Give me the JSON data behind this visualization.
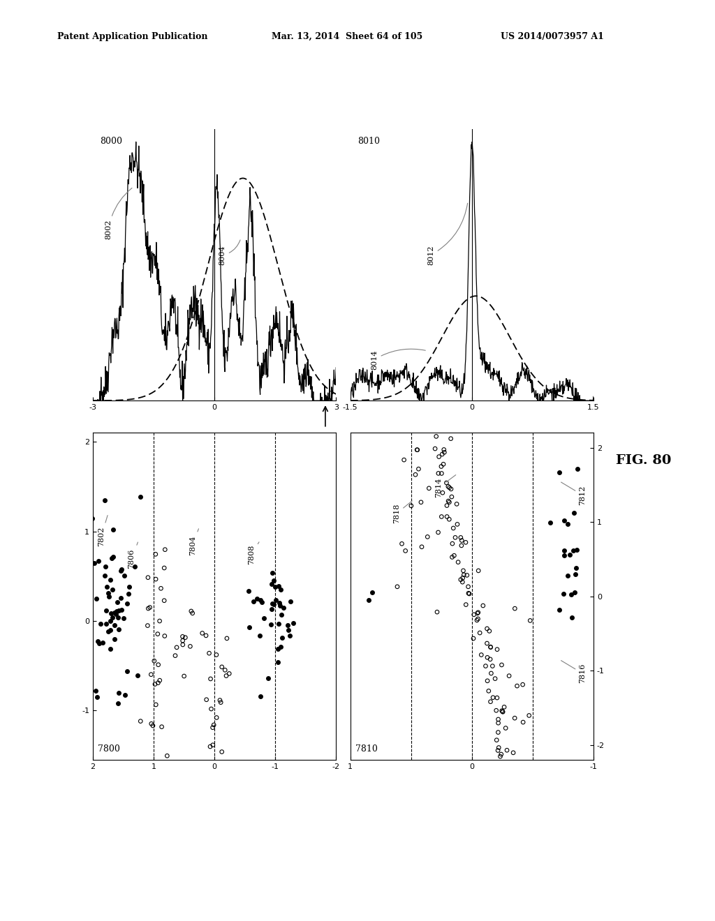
{
  "header_left": "Patent Application Publication",
  "header_mid": "Mar. 13, 2014  Sheet 64 of 105",
  "header_right": "US 2014/0073957 A1",
  "fig_label": "FIG. 80",
  "top_left_label": "8000",
  "top_right_label": "8010",
  "bot_left_label": "7800",
  "bot_right_label": "7810",
  "background": "#ffffff"
}
